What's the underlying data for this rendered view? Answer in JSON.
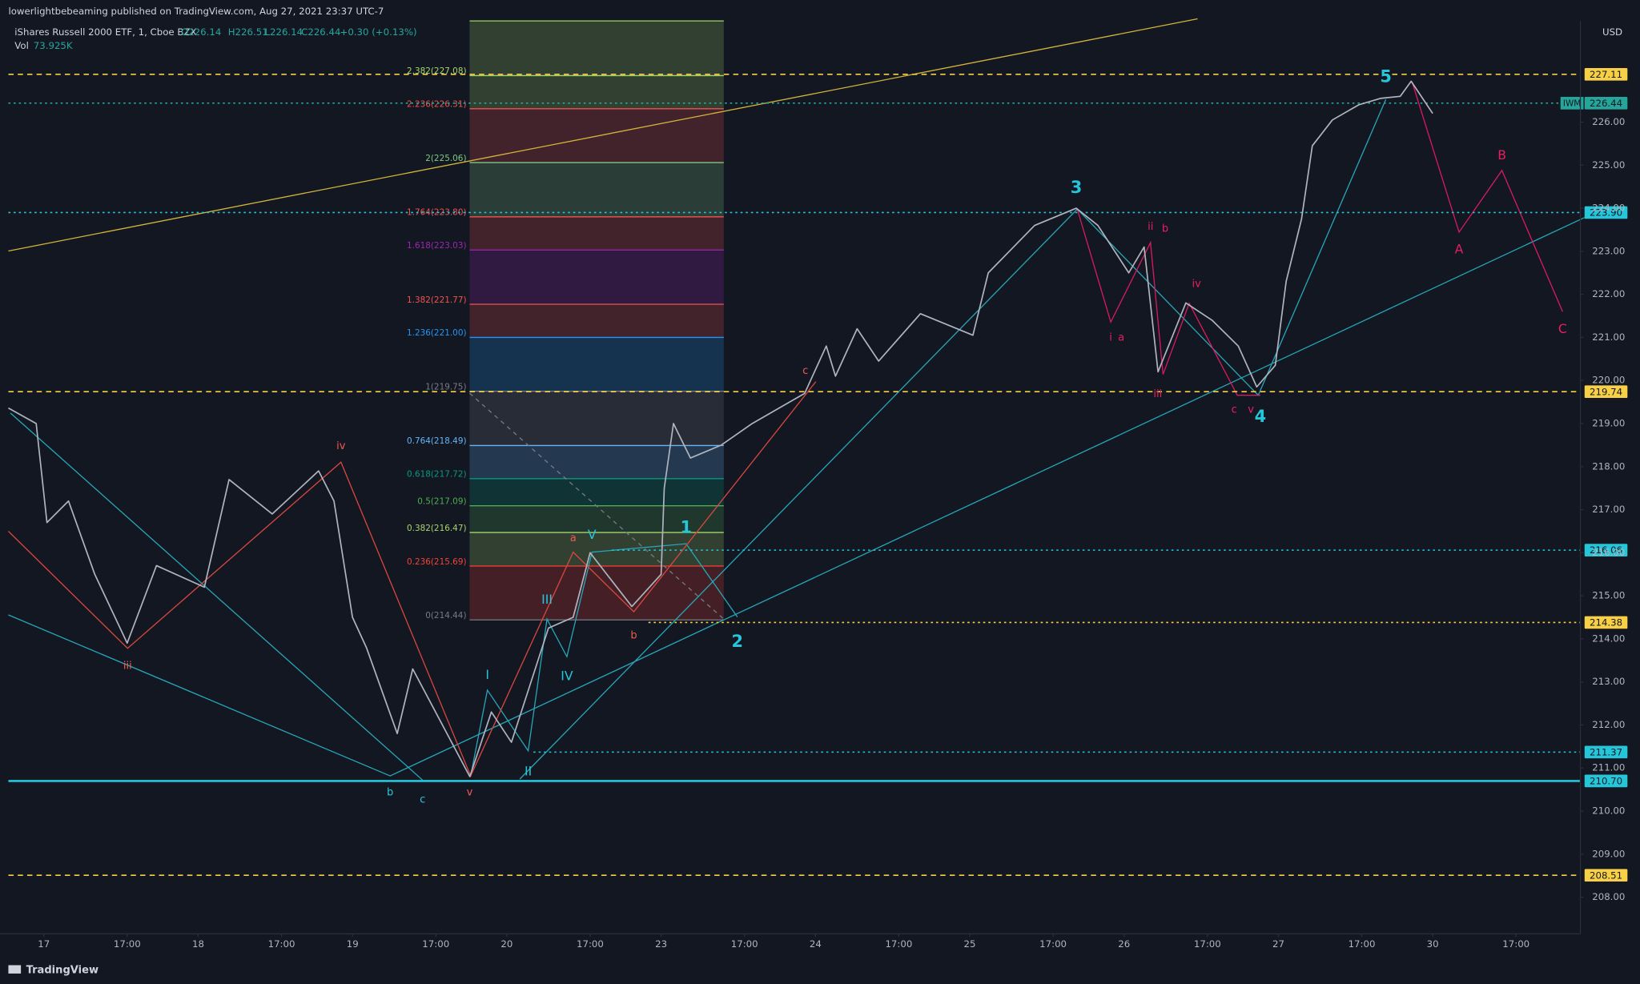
{
  "header": {
    "publisher": "lowerlightbebeaming published on TradingView.com, Aug 27, 2021 23:37 UTC-7",
    "symbol": "iShares Russell 2000 ETF, 1, Cboe BZX",
    "ohlc": [
      "O226.14",
      "H226.51",
      "L226.14",
      "C226.44"
    ],
    "change": "+0.30 (+0.13%)",
    "volume_label": "Vol",
    "volume": "73.925K",
    "currency": "USD"
  },
  "footer": {
    "brand": "TradingView"
  },
  "chart_data": {
    "type": "line",
    "symbol_tag": "IWM",
    "color": "#b0b4bf",
    "xlim": [
      -0.23,
      9.95
    ],
    "ylim": [
      207.15,
      228.35
    ],
    "x": [
      -0.23,
      -0.05,
      0.02,
      0.16,
      0.33,
      0.54,
      0.73,
      1.04,
      1.2,
      1.48,
      1.78,
      1.88,
      2.0,
      2.09,
      2.29,
      2.39,
      2.76,
      2.9,
      3.03,
      3.27,
      3.43,
      3.54,
      3.81,
      4.0,
      4.02,
      4.08,
      4.19,
      4.39,
      4.59,
      4.93,
      5.07,
      5.13,
      5.27,
      5.41,
      5.68,
      6.02,
      6.12,
      6.42,
      6.69,
      6.83,
      7.03,
      7.13,
      7.22,
      7.4,
      7.57,
      7.74,
      7.86,
      7.98,
      8.05,
      8.15,
      8.22,
      8.35,
      8.52,
      8.66,
      8.79,
      8.86,
      9.0
    ],
    "values": [
      219.36,
      219.0,
      216.7,
      217.2,
      215.5,
      213.9,
      215.7,
      215.2,
      217.7,
      216.9,
      217.9,
      217.2,
      214.5,
      213.8,
      211.8,
      213.3,
      210.8,
      212.3,
      211.6,
      214.25,
      214.5,
      216.0,
      214.75,
      215.5,
      217.5,
      219.0,
      218.2,
      218.5,
      219.0,
      219.7,
      220.8,
      220.1,
      221.2,
      220.45,
      221.55,
      221.05,
      222.5,
      223.6,
      224.0,
      223.6,
      222.5,
      223.1,
      220.2,
      221.8,
      221.4,
      220.8,
      219.85,
      220.35,
      222.3,
      223.75,
      225.45,
      226.05,
      226.4,
      226.55,
      226.6,
      226.95,
      226.2
    ],
    "xticks": [
      {
        "value": 0,
        "label": "17"
      },
      {
        "value": 0.54,
        "label": "17:00"
      },
      {
        "value": 1,
        "label": "18"
      },
      {
        "value": 1.54,
        "label": "17:00"
      },
      {
        "value": 2,
        "label": "19"
      },
      {
        "value": 2.54,
        "label": "17:00"
      },
      {
        "value": 3,
        "label": "20"
      },
      {
        "value": 3.54,
        "label": "17:00"
      },
      {
        "value": 4,
        "label": "23"
      },
      {
        "value": 4.54,
        "label": "17:00"
      },
      {
        "value": 5,
        "label": "24"
      },
      {
        "value": 5.54,
        "label": "17:00"
      },
      {
        "value": 6,
        "label": "25"
      },
      {
        "value": 6.54,
        "label": "17:00"
      },
      {
        "value": 7,
        "label": "26"
      },
      {
        "value": 7.54,
        "label": "17:00"
      },
      {
        "value": 8,
        "label": "27"
      },
      {
        "value": 8.54,
        "label": "17:00"
      },
      {
        "value": 9,
        "label": "30"
      },
      {
        "value": 9.54,
        "label": "17:00"
      }
    ],
    "yticks": [
      {
        "value": 208,
        "label": "208.00"
      },
      {
        "value": 209,
        "label": "209.00"
      },
      {
        "value": 210,
        "label": "210.00"
      },
      {
        "value": 211,
        "label": "211.00"
      },
      {
        "value": 212,
        "label": "212.00"
      },
      {
        "value": 213,
        "label": "213.00"
      },
      {
        "value": 214,
        "label": "214.00"
      },
      {
        "value": 215,
        "label": "215.00"
      },
      {
        "value": 216,
        "label": "216.00"
      },
      {
        "value": 217,
        "label": "217.00"
      },
      {
        "value": 218,
        "label": "218.00"
      },
      {
        "value": 219,
        "label": "219.00"
      },
      {
        "value": 220,
        "label": "220.00"
      },
      {
        "value": 221,
        "label": "221.00"
      },
      {
        "value": 222,
        "label": "222.00"
      },
      {
        "value": 223,
        "label": "223.00"
      },
      {
        "value": 224,
        "label": "224.00"
      },
      {
        "value": 225,
        "label": "225.00"
      },
      {
        "value": 226,
        "label": "226.00"
      }
    ],
    "levels": [
      {
        "value": 227.11,
        "label": "227.11",
        "color": "#f7d046",
        "style": "dashed"
      },
      {
        "value": 226.44,
        "label": "226.44",
        "color": "#26a69a",
        "style": "dotted"
      },
      {
        "value": 223.9,
        "label": "223.90",
        "color": "#26c6da",
        "style": "dotted"
      },
      {
        "value": 219.74,
        "label": "219.74",
        "color": "#f7d046",
        "style": "dashed"
      },
      {
        "value": 216.06,
        "label": "216.06",
        "color": "#26c6da",
        "style": "dotted"
      },
      {
        "value": 214.38,
        "label": "214.38",
        "color": "#f7d046",
        "style": "dotted"
      },
      {
        "value": 211.37,
        "label": "211.37",
        "color": "#26c6da",
        "style": "dotted"
      },
      {
        "value": 210.7,
        "label": "210.70",
        "color": "#26c6da",
        "style": "solid"
      },
      {
        "value": 208.51,
        "label": "208.51",
        "color": "#f7d046",
        "style": "dashed"
      }
    ],
    "fib_levels": [
      {
        "label": "2.382(227.08)",
        "price": 227.08,
        "color": "#a5d66b"
      },
      {
        "label": "2.236(226.31)",
        "price": 226.31,
        "color": "#ef5350"
      },
      {
        "label": "2(225.06)",
        "price": 225.06,
        "color": "#81c784"
      },
      {
        "label": "1.764(223.80)",
        "price": 223.8,
        "color": "#ef5350"
      },
      {
        "label": "1.618(223.03)",
        "price": 223.03,
        "color": "#9c27b0"
      },
      {
        "label": "1.382(221.77)",
        "price": 221.77,
        "color": "#ef5350"
      },
      {
        "label": "1.236(221.00)",
        "price": 221.0,
        "color": "#2196f3"
      },
      {
        "label": "1(219.75)",
        "price": 219.75,
        "color": "#787b86"
      },
      {
        "label": "0.764(218.49)",
        "price": 218.49,
        "color": "#64b5f6"
      },
      {
        "label": "0.618(217.72)",
        "price": 217.72,
        "color": "#089981"
      },
      {
        "label": "0.5(217.09)",
        "price": 217.09,
        "color": "#4caf50"
      },
      {
        "label": "0.382(216.47)",
        "price": 216.47,
        "color": "#a5d66b"
      },
      {
        "label": "0.236(215.69)",
        "price": 215.69,
        "color": "#f44336"
      },
      {
        "label": "0(214.44)",
        "price": 214.44,
        "color": "#787b86"
      }
    ],
    "wave_labels": [
      {
        "text": "iii",
        "color": "#f0594f"
      },
      {
        "text": "iv",
        "color": "#f0594f"
      },
      {
        "text": "b",
        "color": "#26c6da"
      },
      {
        "text": "c",
        "color": "#26c6da"
      },
      {
        "text": "v",
        "color": "#f0594f"
      },
      {
        "text": "I",
        "color": "#26c6da"
      },
      {
        "text": "II",
        "color": "#26c6da"
      },
      {
        "text": "III",
        "color": "#26c6da"
      },
      {
        "text": "IV",
        "color": "#26c6da"
      },
      {
        "text": "V",
        "color": "#26c6da"
      },
      {
        "text": "a",
        "color": "#f0594f"
      },
      {
        "text": "b",
        "color": "#f0594f"
      },
      {
        "text": "1",
        "color": "#26c6da"
      },
      {
        "text": "2",
        "color": "#26c6da"
      },
      {
        "text": "c",
        "color": "#f0594f"
      },
      {
        "text": "3",
        "color": "#26c6da"
      },
      {
        "text": "ii",
        "color": "#e91e63"
      },
      {
        "text": "b",
        "color": "#e91e63"
      },
      {
        "text": "i",
        "color": "#e91e63"
      },
      {
        "text": "a",
        "color": "#e91e63"
      },
      {
        "text": "iii",
        "color": "#e91e63"
      },
      {
        "text": "iv",
        "color": "#e91e63"
      },
      {
        "text": "c",
        "color": "#e91e63"
      },
      {
        "text": "v",
        "color": "#e91e63"
      },
      {
        "text": "4",
        "color": "#26c6da"
      },
      {
        "text": "5",
        "color": "#26c6da"
      },
      {
        "text": "A",
        "color": "#e91e63"
      },
      {
        "text": "B",
        "color": "#e91e63"
      },
      {
        "text": "C",
        "color": "#e91e63"
      }
    ]
  }
}
